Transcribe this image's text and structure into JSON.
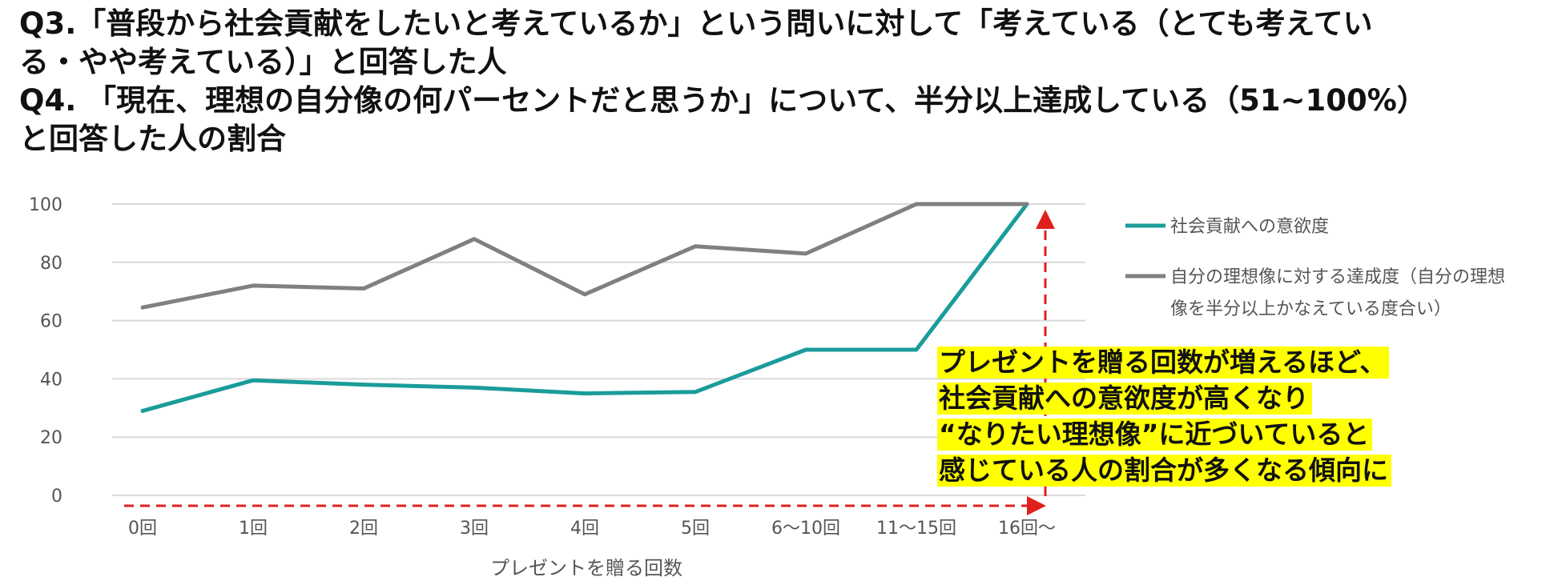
{
  "title_lines": [
    "Q3.「普段から社会貢献をしたいと考えているか」という問いに対して「考えている（とても考えてい",
    "る・やや考えている）」と回答した人",
    "Q4. 「現在、理想の自分像の何パーセントだと思うか」について、半分以上達成している（51~100%）",
    "と回答した人の割合"
  ],
  "annotation_lines": [
    "プレゼントを贈る回数が増えるほど、",
    "社会貢献への意欲度が高くなり",
    "“なりたい理想像”に近づいていると",
    "感じている人の割合が多くなる傾向に"
  ],
  "colors": {
    "series1": "#1a9c9a",
    "series2": "#808080",
    "grid": "#d9d9d9",
    "arrow": "#e0201c",
    "highlight": "#ffff00"
  },
  "chart_data": {
    "type": "line",
    "xlabel": "プレゼントを贈る回数",
    "ylabel": "",
    "categories": [
      "0回",
      "1回",
      "2回",
      "3回",
      "4回",
      "5回",
      "6〜10回",
      "11〜15回",
      "16回〜"
    ],
    "ylim": [
      0,
      100
    ],
    "yticks": [
      0,
      20,
      40,
      60,
      80,
      100
    ],
    "grid": true,
    "legend_position": "right",
    "series": [
      {
        "name": "社会貢献への意欲度",
        "values": [
          29,
          39.5,
          38,
          37,
          35,
          35.5,
          50,
          50,
          100
        ]
      },
      {
        "name": "自分の理想像に対する達成度（自分の理想像を半分以上かなえている度合い）",
        "values": [
          64.5,
          72,
          71,
          88,
          69,
          85.5,
          83,
          100,
          100
        ]
      }
    ],
    "legend_lines": [
      [
        "社会貢献への意欲度"
      ],
      [
        "自分の理想像に対する達成度（自分の理想",
        "像を半分以上かなえている度合い）"
      ]
    ]
  }
}
